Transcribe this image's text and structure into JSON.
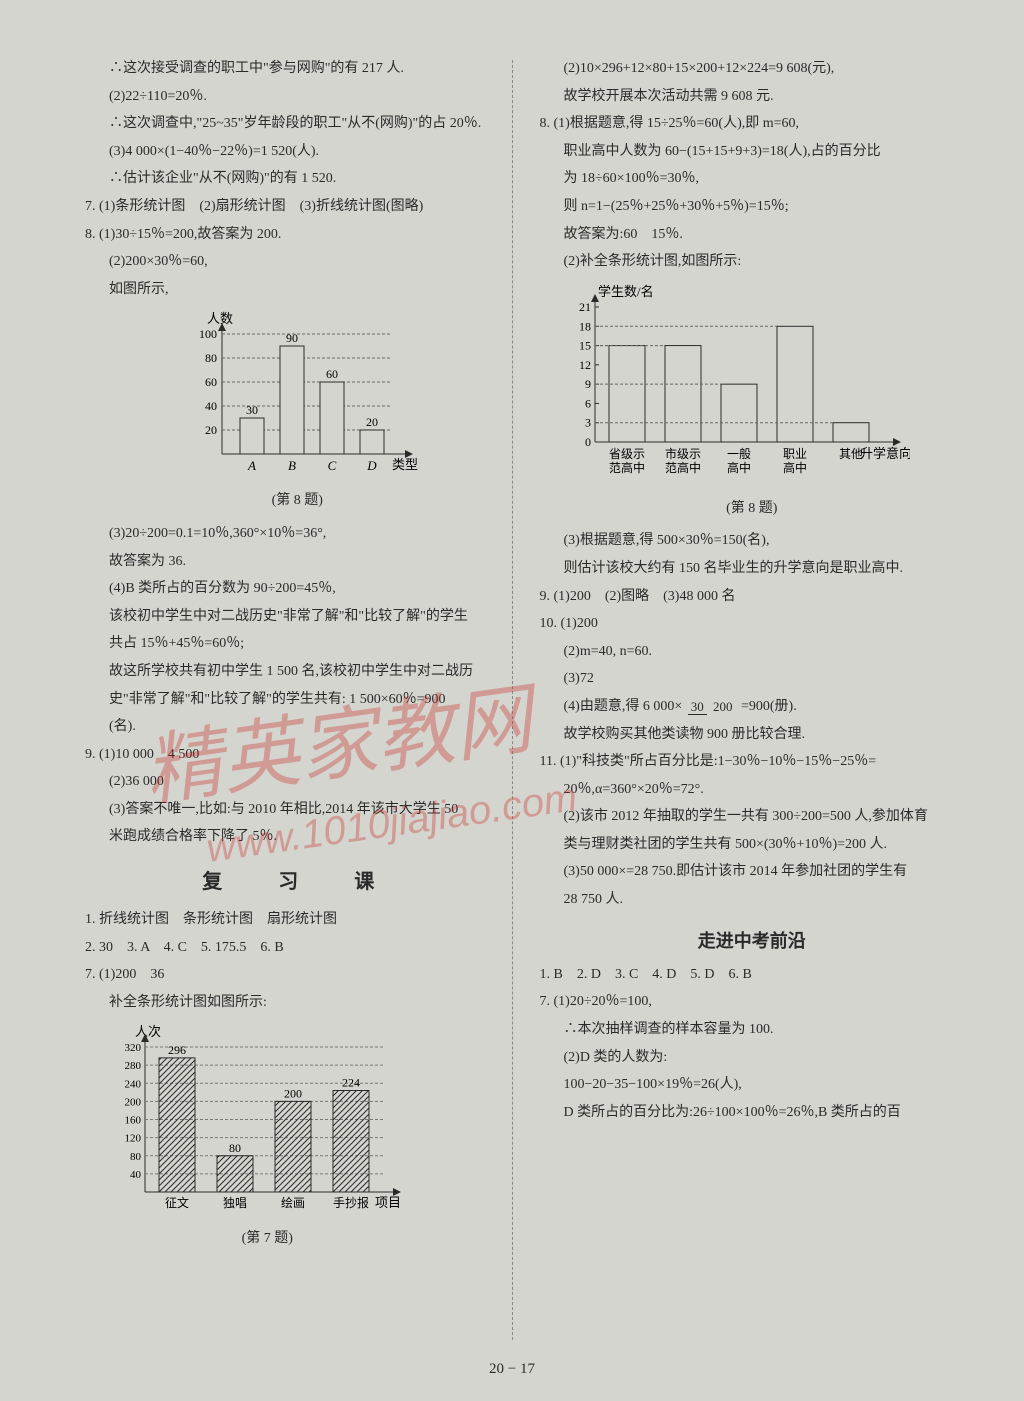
{
  "left": {
    "l1": "∴这次接受调查的职工中\"参与网购\"的有 217 人.",
    "l2": "(2)22÷110=20％.",
    "l3": "∴这次调查中,\"25~35\"岁年龄段的职工\"从不(网购)\"的占 20％.",
    "l4": "(3)4 000×(1−40％−22％)=1 520(人).",
    "l5": "∴估计该企业\"从不(网购)\"的有 1 520.",
    "l6": "7. (1)条形统计图　(2)扇形统计图　(3)折线统计图(图略)",
    "l7": "8. (1)30÷15％=200,故答案为 200.",
    "l8": "(2)200×30％=60,",
    "l9": "如图所示,",
    "l10": "(3)20÷200=0.1=10％,360°×10％=36°,",
    "l11": "故答案为 36.",
    "l12": "(4)B 类所占的百分数为 90÷200=45％,",
    "l13": "该校初中学生中对二战历史\"非常了解\"和\"比较了解\"的学生",
    "l14": "共占 15％+45％=60％;",
    "l15": "故这所学校共有初中学生 1 500 名,该校初中学生中对二战历",
    "l16": "史\"非常了解\"和\"比较了解\"的学生共有: 1 500×60％=900",
    "l17": "(名).",
    "l18": "9. (1)10 000　4 500",
    "l19": "(2)36 000",
    "l20": "(3)答案不唯一,比如:与 2010 年相比,2014 年该市大学生 50",
    "l21": "米跑成绩合格率下降了 5％.",
    "heading": "复　习　课",
    "l22": "1. 折线统计图　条形统计图　扇形统计图",
    "l23": "2. 30　3. A　4. C　5. 175.5　6. B",
    "l24": "7. (1)200　36",
    "l25": "补全条形统计图如图所示:"
  },
  "right": {
    "r1": "(2)10×296+12×80+15×200+12×224=9 608(元),",
    "r2": "故学校开展本次活动共需 9 608 元.",
    "r3": "8. (1)根据题意,得 15÷25％=60(人),即 m=60,",
    "r4": "职业高中人数为 60−(15+15+9+3)=18(人),占的百分比",
    "r5": "为 18÷60×100％=30％,",
    "r6": "则 n=1−(25％+25％+30％+5％)=15％;",
    "r7": "故答案为:60　15％.",
    "r8": "(2)补全条形统计图,如图所示:",
    "r9": "(3)根据题意,得 500×30％=150(名),",
    "r10": "则估计该校大约有 150 名毕业生的升学意向是职业高中.",
    "r11": "9. (1)200　(2)图略　(3)48 000 名",
    "r12": "10. (1)200",
    "r13": "(2)m=40, n=60.",
    "r14": "(3)72",
    "r15a": "(4)由题意,得 6 000×",
    "r15num": "30",
    "r15den": "200",
    "r15b": "=900(册).",
    "r16": "故学校购买其他类读物 900 册比较合理.",
    "r17": "11. (1)\"科技类\"所占百分比是:1−30％−10％−15％−25％=",
    "r18": "20％,α=360°×20％=72°.",
    "r19": "(2)该市 2012 年抽取的学生一共有 300÷200=500 人,参加体育",
    "r20": "类与理财类社团的学生共有 500×(30％+10％)=200 人.",
    "r21": "(3)50 000×=28 750.即估计该市 2014 年参加社团的学生有",
    "r22": "28 750 人.",
    "heading": "走进中考前沿",
    "r23": "1. B　2. D　3. C　4. D　5. D　6. B",
    "r24": "7. (1)20÷20％=100,",
    "r25": "∴本次抽样调查的样本容量为 100.",
    "r26": "(2)D 类的人数为:",
    "r27": "100−20−35−100×19％=26(人),",
    "r28": "D 类所占的百分比为:26÷100×100％=26％,B 类所占的百"
  },
  "chart8": {
    "ylabel": "人数",
    "xlabel": "类型",
    "categories": [
      "A",
      "B",
      "C",
      "D"
    ],
    "values": [
      30,
      90,
      60,
      20
    ],
    "value_labels": [
      "30",
      "90",
      "60",
      "20"
    ],
    "ymax": 100,
    "ytick_step": 20,
    "yticks": [
      20,
      40,
      60,
      80,
      100
    ],
    "bar_color": "#d5d5d0",
    "bar_border": "#2a2a2a",
    "grid_color": "#666",
    "caption": "(第 8 题)"
  },
  "chart7": {
    "ylabel": "人次",
    "xlabel": "项目",
    "categories": [
      "征文",
      "独唱",
      "绘画",
      "手抄报"
    ],
    "values": [
      296,
      80,
      200,
      224
    ],
    "value_labels": [
      "296",
      "80",
      "200",
      "224"
    ],
    "ymax": 320,
    "ytick_step": 40,
    "yticks": [
      40,
      80,
      120,
      160,
      200,
      240,
      280,
      320
    ],
    "bar_fill": "hatch",
    "bar_border": "#2a2a2a",
    "caption": "(第 7 题)"
  },
  "chart8right": {
    "ylabel": "学生数/名",
    "xlabel": "升学意向",
    "categories": [
      "省级示\\n范高中",
      "市级示\\n范高中",
      "一般\\n高中",
      "职业\\n高中",
      "其他"
    ],
    "values": [
      15,
      15,
      9,
      18,
      3
    ],
    "ymax": 21,
    "yticks": [
      3,
      6,
      9,
      12,
      15,
      18,
      21
    ],
    "bar_color": "#d5d5d0",
    "bar_border": "#2a2a2a",
    "caption": "(第 8 题)"
  },
  "footer": "20 − 17",
  "watermark1": "精英家教网",
  "watermark2": "www.1010jiajiao.com"
}
